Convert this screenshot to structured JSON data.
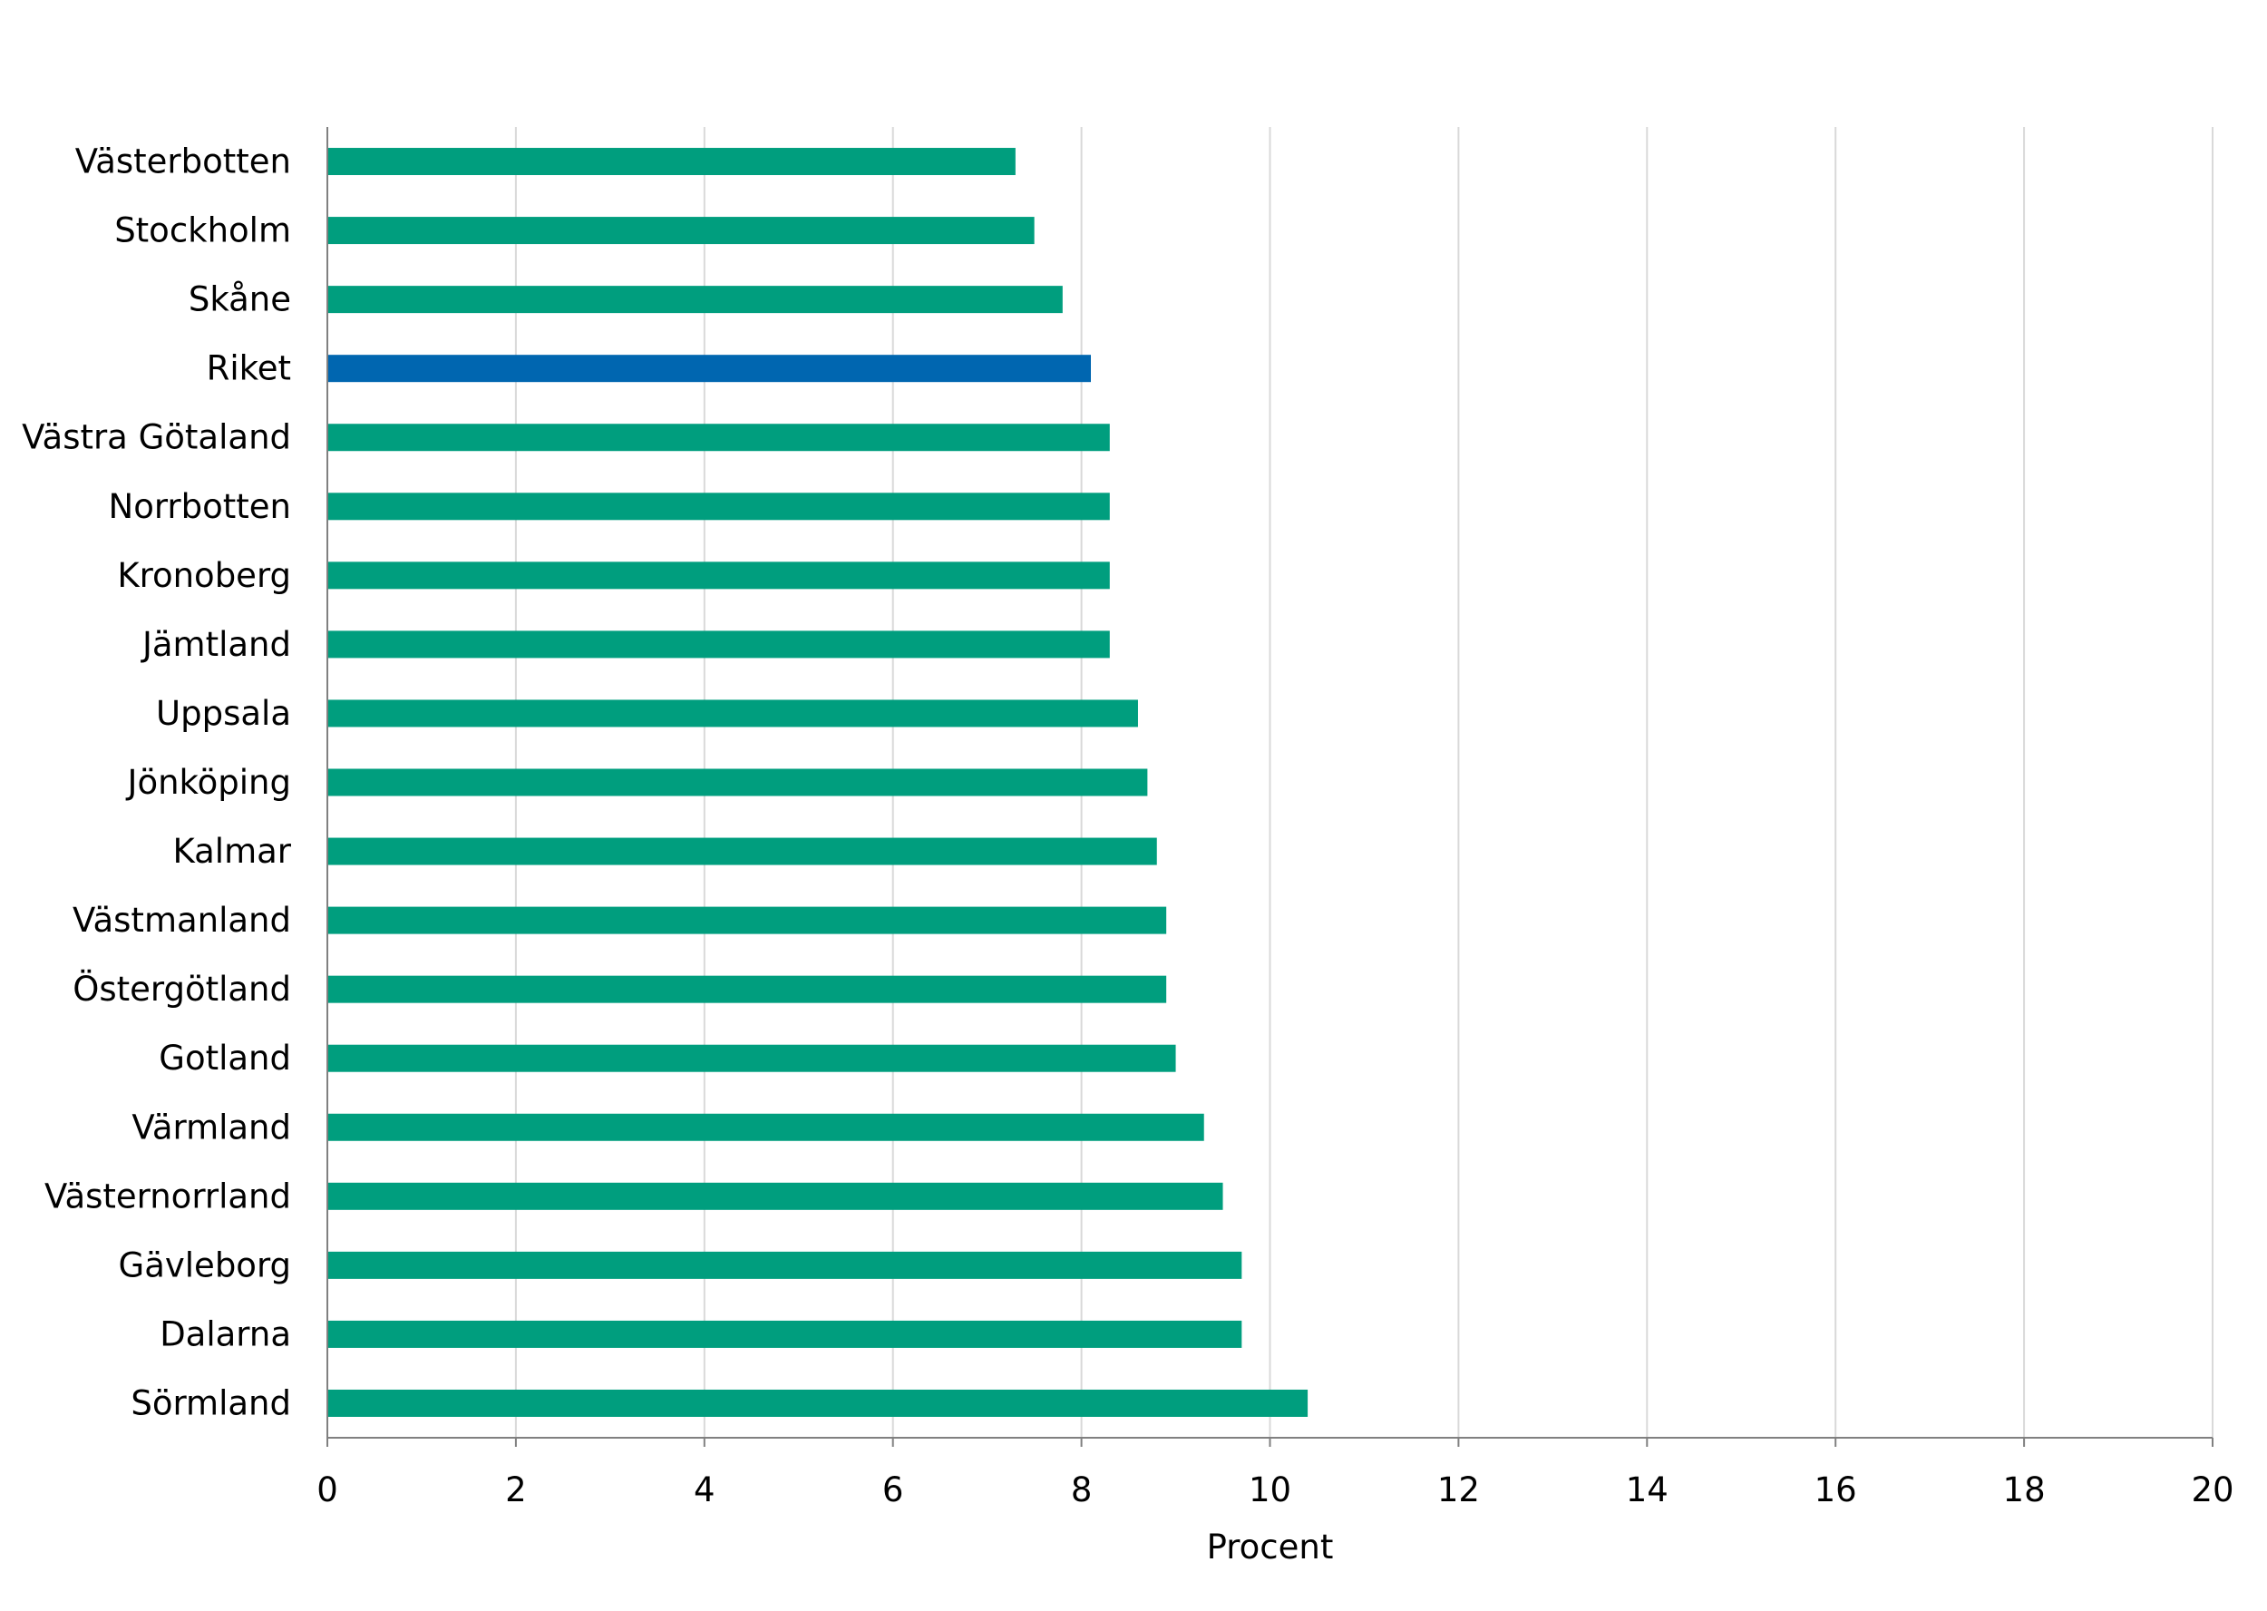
{
  "chart_data": {
    "type": "bar",
    "orientation": "horizontal",
    "title": "",
    "xlabel": "Procent",
    "ylabel": "",
    "xlim": [
      0,
      20
    ],
    "x_ticks": [
      0,
      2,
      4,
      6,
      8,
      10,
      12,
      14,
      16,
      18,
      20
    ],
    "grid": "vertical",
    "legend": "none",
    "categories": [
      "Västerbotten",
      "Stockholm",
      "Skåne",
      "Riket",
      "Västra Götaland",
      "Norrbotten",
      "Kronoberg",
      "Jämtland",
      "Uppsala",
      "Jönköping",
      "Kalmar",
      "Västmanland",
      "Östergötland",
      "Gotland",
      "Värmland",
      "Västernorrland",
      "Gävleborg",
      "Dalarna",
      "Sörmland"
    ],
    "values": [
      7.3,
      7.5,
      7.8,
      8.1,
      8.3,
      8.3,
      8.3,
      8.3,
      8.6,
      8.7,
      8.8,
      8.9,
      8.9,
      9.0,
      9.3,
      9.5,
      9.7,
      9.7,
      10.4
    ],
    "colors": {
      "bar": "#009e7e",
      "highlight": "#0066b0",
      "grid": "#d9d9d9",
      "axis": "#808080"
    },
    "highlight_category": "Riket"
  }
}
